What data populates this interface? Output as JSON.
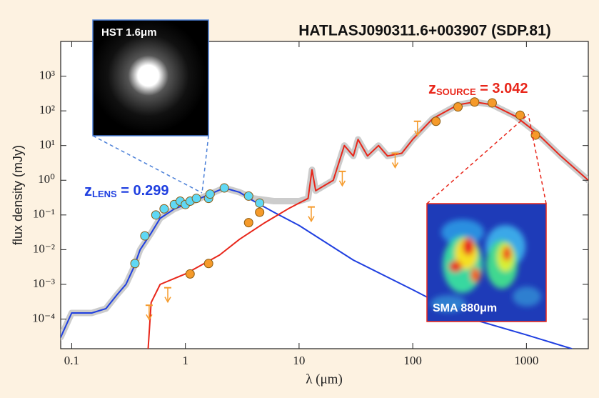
{
  "chart_data": {
    "type": "sed",
    "title": "HATLASJ090311.6+003907 (SDP.81)",
    "xlabel": "λ (μm)",
    "ylabel": "flux density (mJy)",
    "xscale": "log",
    "yscale": "log",
    "xlim": [
      0.08,
      3500
    ],
    "ylim": [
      1.4e-05,
      10000
    ],
    "xticks": [
      0.1,
      1,
      10,
      100,
      1000
    ],
    "yticks": [
      {
        "value": 0.0001,
        "label": "10⁻⁴"
      },
      {
        "value": 0.001,
        "label": "10⁻³"
      },
      {
        "value": 0.01,
        "label": "10⁻²"
      },
      {
        "value": 0.1,
        "label": "10⁻¹"
      },
      {
        "value": 1,
        "label": "10⁰"
      },
      {
        "value": 10,
        "label": "10¹"
      },
      {
        "value": 100,
        "label": "10²"
      },
      {
        "value": 1000,
        "label": "10³"
      }
    ],
    "lens_label": {
      "main": "z",
      "sub": "LENS",
      "rest": " = 0.299",
      "color": "#1f3fe0"
    },
    "source_label": {
      "main": "z",
      "sub": "SOURCE",
      "rest": " = 3.042",
      "color": "#e8261a"
    },
    "insets": [
      {
        "label": "HST 1.6μm"
      },
      {
        "label": "SMA 880μm"
      }
    ],
    "lines": [
      {
        "color": "#cccccc",
        "width": 9,
        "x": [
          0.08,
          0.1,
          0.15,
          0.2,
          0.25,
          0.3,
          0.35,
          0.4,
          0.5,
          0.6,
          0.8,
          1.0,
          1.5,
          2.2,
          3,
          4,
          6,
          8,
          10,
          12,
          13,
          14,
          20,
          25,
          30,
          33,
          40,
          50,
          60,
          80,
          100,
          150,
          250,
          350,
          500,
          800,
          1200,
          2000,
          3500
        ],
        "values": [
          3e-05,
          0.00015,
          0.00015,
          0.0002,
          0.0005,
          0.001,
          0.003,
          0.01,
          0.03,
          0.08,
          0.15,
          0.2,
          0.35,
          0.6,
          0.45,
          0.3,
          0.25,
          0.25,
          0.25,
          0.3,
          2,
          0.5,
          1,
          10,
          5,
          15,
          5,
          10,
          5,
          6,
          15,
          60,
          150,
          180,
          150,
          70,
          25,
          5,
          1
        ]
      },
      {
        "color": "#1f3fe0",
        "width": 2,
        "x": [
          0.08,
          0.1,
          0.15,
          0.2,
          0.25,
          0.3,
          0.35,
          0.4,
          0.5,
          0.6,
          0.8,
          1.0,
          1.5,
          2.2,
          3,
          4,
          6,
          10,
          30,
          100,
          300,
          1000,
          2500
        ],
        "values": [
          3e-05,
          0.00015,
          0.00015,
          0.0002,
          0.0005,
          0.001,
          0.003,
          0.01,
          0.03,
          0.08,
          0.15,
          0.2,
          0.35,
          0.6,
          0.45,
          0.25,
          0.12,
          0.05,
          0.005,
          0.0007,
          0.00011,
          3.5e-05,
          1.4e-05
        ]
      },
      {
        "color": "#e8261a",
        "width": 2,
        "x": [
          0.47,
          0.5,
          0.6,
          1,
          2,
          3,
          5,
          8,
          10,
          12,
          13,
          14,
          20,
          25,
          30,
          33,
          40,
          50,
          60,
          80,
          100,
          150,
          250,
          350,
          500,
          800,
          1200,
          2000,
          3500
        ],
        "values": [
          1.4e-05,
          0.0003,
          0.001,
          0.002,
          0.007,
          0.02,
          0.06,
          0.15,
          0.22,
          0.3,
          2,
          0.5,
          1,
          10,
          5,
          15,
          5,
          10,
          5,
          6,
          15,
          60,
          150,
          180,
          150,
          70,
          25,
          5,
          1
        ]
      }
    ],
    "point_sets": [
      {
        "color": "#5fd8f5",
        "x": [
          0.36,
          0.44,
          0.55,
          0.65,
          0.8,
          0.9,
          1.0,
          1.1,
          1.25,
          1.6,
          1.65,
          2.2,
          3.6,
          4.5
        ],
        "values": [
          0.004,
          0.025,
          0.1,
          0.15,
          0.2,
          0.25,
          0.2,
          0.25,
          0.3,
          0.3,
          0.4,
          0.6,
          0.35,
          0.22
        ]
      },
      {
        "color": "#f59a2a",
        "x": [
          1.1,
          1.6,
          3.6,
          4.5,
          160,
          250,
          350,
          500,
          880,
          1200
        ],
        "values": [
          0.002,
          0.004,
          0.06,
          0.12,
          50,
          130,
          180,
          170,
          75,
          20
        ]
      }
    ],
    "upper_limits": {
      "color": "#f59a2a",
      "x": [
        0.48,
        0.7,
        12.8,
        24,
        70,
        110
      ],
      "values": [
        0.00025,
        0.0008,
        0.17,
        1.8,
        6,
        50
      ]
    }
  }
}
